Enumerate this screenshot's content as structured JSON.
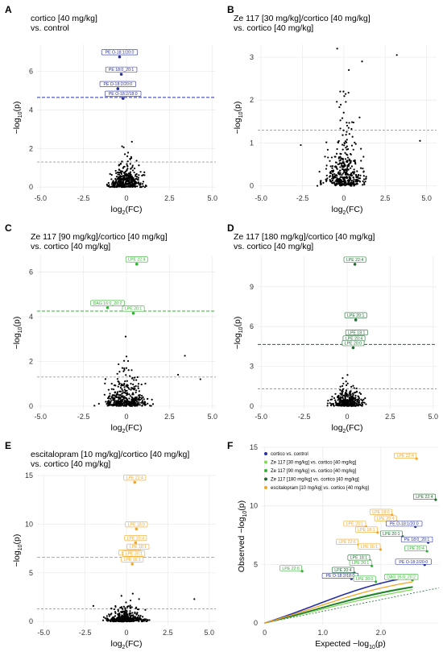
{
  "colors": {
    "blue": "#2630a6",
    "lightgreen": "#7ed957",
    "green": "#33b233",
    "darkgreen": "#1f6b2f",
    "orange": "#f5a623",
    "points": "#000000",
    "threshold_grey": "#9a9a9a",
    "grid": "#ececec"
  },
  "chart_data": [
    {
      "panel": "A",
      "type": "scatter",
      "title": [
        "cortico [40 mg/kg]",
        "vs. control"
      ],
      "xlabel": "log2(FC)",
      "ylabel": "-log10(p)",
      "xlim": [
        -5.2,
        5.2
      ],
      "ylim": [
        -0.2,
        7.4
      ],
      "xticks": [
        -5,
        -2.5,
        0,
        2.5,
        5
      ],
      "yticks": [
        0,
        2,
        4,
        6
      ],
      "color": "blue",
      "threshold_fdr": 4.65,
      "threshold_nominal": 1.3,
      "highlighted": [
        {
          "label": "PE O-18:1/20:0",
          "x": -0.4,
          "y": 6.75
        },
        {
          "label": "PE 18:0_20:1",
          "x": -0.3,
          "y": 5.85
        },
        {
          "label": "PE O-18:2/20:0",
          "x": -0.5,
          "y": 5.1
        },
        {
          "label": "PE O-18:2/18:0",
          "x": -0.2,
          "y": 4.6
        }
      ],
      "cloud": {
        "x_sd": 0.45,
        "x_range": [
          -3.6,
          2.6
        ],
        "y_max": 3.4,
        "n": 380,
        "seed": 11
      }
    },
    {
      "panel": "B",
      "type": "scatter",
      "title": [
        "Ze 117 [30 mg/kg]/cortico [40 mg/kg]",
        "vs. cortico [40 mg/kg]"
      ],
      "xlabel": "log2(FC)",
      "ylabel": "-log10(p)",
      "xlim": [
        -5.2,
        5.6
      ],
      "ylim": [
        -0.12,
        3.3
      ],
      "xticks": [
        -5,
        -2.5,
        0,
        2.5,
        5
      ],
      "yticks": [
        0,
        1,
        2,
        3
      ],
      "color": "lightgreen",
      "threshold_nominal": 1.3,
      "highlighted": [],
      "extra_points": [
        {
          "x": -0.4,
          "y": 3.2
        },
        {
          "x": 3.2,
          "y": 3.05
        },
        {
          "x": 1.1,
          "y": 2.9
        },
        {
          "x": 0.3,
          "y": 2.7
        },
        {
          "x": 4.6,
          "y": 1.05
        },
        {
          "x": -2.6,
          "y": 0.95
        }
      ],
      "cloud": {
        "x_sd": 0.55,
        "x_range": [
          -2.8,
          2.8
        ],
        "y_max": 2.2,
        "n": 400,
        "seed": 23
      }
    },
    {
      "panel": "C",
      "type": "scatter",
      "title": [
        "Ze 117 [90 mg/kg]/cortico [40 mg/kg]",
        "vs. cortico [40 mg/kg]"
      ],
      "xlabel": "log2(FC)",
      "ylabel": "-log10(p)",
      "xlim": [
        -5.2,
        5.2
      ],
      "ylim": [
        -0.15,
        6.7
      ],
      "xticks": [
        -5,
        -2.5,
        0,
        2.5,
        5
      ],
      "yticks": [
        0,
        2,
        4,
        6
      ],
      "color": "green",
      "threshold_fdr": 4.25,
      "threshold_nominal": 1.3,
      "highlighted": [
        {
          "label": "LPE 22:4",
          "x": 0.6,
          "y": 6.35
        },
        {
          "label": "DAG 16:0_20:2",
          "x": -1.1,
          "y": 4.4
        },
        {
          "label": "LPE 20:1",
          "x": 0.4,
          "y": 4.15
        }
      ],
      "extra_points": [
        {
          "x": 4.3,
          "y": 1.2
        },
        {
          "x": 3.4,
          "y": 2.25
        },
        {
          "x": 3.0,
          "y": 1.4
        }
      ],
      "cloud": {
        "x_sd": 0.6,
        "x_range": [
          -3.0,
          3.0
        ],
        "y_max": 3.7,
        "n": 400,
        "seed": 37
      }
    },
    {
      "panel": "D",
      "type": "scatter",
      "title": [
        "Ze 117 [180 mg/kg]/cortico [40 mg/kg]",
        "vs. cortico [40 mg/kg]"
      ],
      "xlabel": "log2(FC)",
      "ylabel": "-log10(p)",
      "xlim": [
        -5.2,
        5.2
      ],
      "ylim": [
        -0.25,
        11.3
      ],
      "xticks": [
        -5,
        -2.5,
        0,
        2.5,
        5
      ],
      "yticks": [
        0,
        3,
        6,
        9
      ],
      "color": "darkgreen",
      "threshold_fdr": 4.65,
      "threshold_nominal": 1.3,
      "highlighted": [
        {
          "label": "LPE 22:4",
          "x": 0.45,
          "y": 10.7
        },
        {
          "label": "LPE 20:1",
          "x": 0.5,
          "y": 6.5
        },
        {
          "label": "LPE 18:1",
          "x": 0.55,
          "y": 5.2
        },
        {
          "label": "LPE 20:4",
          "x": 0.4,
          "y": 4.75
        },
        {
          "label": "LPE 20:0",
          "x": 0.35,
          "y": 4.4
        }
      ],
      "cloud": {
        "x_sd": 0.45,
        "x_range": [
          -2.7,
          2.7
        ],
        "y_max": 3.6,
        "n": 360,
        "seed": 53
      }
    },
    {
      "panel": "E",
      "type": "scatter",
      "title": [
        "escitalopram [10 mg/kg]/cortico [40 mg/kg]",
        "vs. cortico [40 mg/kg]"
      ],
      "xlabel": "log2(FC)",
      "ylabel": "-log10(p)",
      "xlim": [
        -5.4,
        5.4
      ],
      "ylim": [
        -0.4,
        15.0
      ],
      "xticks": [
        -5,
        -2.5,
        0,
        2.5,
        5
      ],
      "yticks": [
        0,
        5,
        10,
        15
      ],
      "color": "orange",
      "threshold_fdr": 6.6,
      "threshold_nominal": 1.3,
      "highlighted": [
        {
          "label": "LPE 22:4",
          "x": 0.5,
          "y": 14.3
        },
        {
          "label": "LPE 18:0",
          "x": 0.6,
          "y": 9.5
        },
        {
          "label": "LPE 20:4",
          "x": 0.55,
          "y": 8.1
        },
        {
          "label": "LPE 18:1",
          "x": 0.7,
          "y": 7.2
        },
        {
          "label": "LPE 22:6",
          "x": 0.2,
          "y": 6.6
        },
        {
          "label": "LPE 20:1",
          "x": 0.45,
          "y": 6.5
        },
        {
          "label": "LPE 16:1",
          "x": 0.35,
          "y": 5.9
        }
      ],
      "cloud": {
        "x_sd": 0.55,
        "x_range": [
          -2.6,
          2.8
        ],
        "y_max": 4.2,
        "n": 400,
        "seed": 71
      },
      "extra_points": [
        {
          "x": 4.1,
          "y": 2.3
        },
        {
          "x": -2.0,
          "y": 1.6
        }
      ]
    },
    {
      "panel": "F",
      "type": "line",
      "title": [],
      "xlabel": "Expected -log10(p)",
      "ylabel": "Observed -log10(p)",
      "xlim": [
        -0.05,
        3.0
      ],
      "ylim": [
        -0.2,
        15.0
      ],
      "xticks": [
        0,
        1,
        2
      ],
      "yticks": [
        0,
        5,
        10,
        15
      ],
      "series": [
        {
          "name": "cortico vs. control",
          "color": "blue",
          "slope": 1.55,
          "bump": 0.6
        },
        {
          "name": "Ze 117 [30 mg/kg] vs. cortico [40 mg/kg]",
          "color": "lightgreen",
          "slope": 1.12,
          "bump": 0.2
        },
        {
          "name": "Ze 117 [90 mg/kg] vs. cortico [40 mg/kg]",
          "color": "green",
          "slope": 1.22,
          "bump": 0.35
        },
        {
          "name": "Ze 117 [180 mg/kg] vs. cortico [40 mg/kg]",
          "color": "darkgreen",
          "slope": 1.2,
          "bump": 0.3
        },
        {
          "name": "escitalopram [10 mg/kg] vs. cortico [40 mg/kg]",
          "color": "orange",
          "slope": 1.38,
          "bump": 0.45
        }
      ],
      "legend_position": "top-left",
      "labels": [
        {
          "label": "LPE 22:4",
          "x": 2.42,
          "y": 14.3,
          "color": "orange"
        },
        {
          "label": "LPE 22:4",
          "x": 2.75,
          "y": 10.8,
          "color": "darkgreen"
        },
        {
          "label": "LPE 18:0",
          "x": 2.0,
          "y": 9.5,
          "color": "orange"
        },
        {
          "label": "LPE 20:4",
          "x": 2.08,
          "y": 8.95,
          "color": "orange"
        },
        {
          "label": "LPE 20:1",
          "x": 1.55,
          "y": 8.5,
          "color": "orange"
        },
        {
          "label": "PE O-18:1/20:0",
          "x": 2.4,
          "y": 8.5,
          "color": "blue"
        },
        {
          "label": "LPE 18:1",
          "x": 1.75,
          "y": 8.0,
          "color": "orange"
        },
        {
          "label": "LPE 20:1",
          "x": 2.18,
          "y": 7.65,
          "color": "darkgreen"
        },
        {
          "label": "PE 18:0_20:1",
          "x": 2.62,
          "y": 7.15,
          "color": "blue"
        },
        {
          "label": "LPE 22:6",
          "x": 1.42,
          "y": 6.95,
          "color": "orange"
        },
        {
          "label": "LPE 16:1",
          "x": 1.8,
          "y": 6.55,
          "color": "orange"
        },
        {
          "label": "LPE 20:4",
          "x": 2.6,
          "y": 6.4,
          "color": "green"
        },
        {
          "label": "LPE 18:1",
          "x": 1.62,
          "y": 5.6,
          "color": "darkgreen"
        },
        {
          "label": "LPE 20:1",
          "x": 1.65,
          "y": 5.15,
          "color": "green"
        },
        {
          "label": "PE O-18:2/20:0",
          "x": 2.56,
          "y": 5.25,
          "color": "blue"
        },
        {
          "label": "LPE 22:6",
          "x": 0.45,
          "y": 4.7,
          "color": "green"
        },
        {
          "label": "LPE 20:4",
          "x": 1.35,
          "y": 4.55,
          "color": "darkgreen"
        },
        {
          "label": "PE O-18:2/18:0",
          "x": 1.3,
          "y": 4.05,
          "color": "blue"
        },
        {
          "label": "LPE 20:0",
          "x": 1.72,
          "y": 3.8,
          "color": "green"
        },
        {
          "label": "DAG 16:0_20:2",
          "x": 2.35,
          "y": 3.95,
          "color": "green"
        }
      ]
    }
  ],
  "panel_labels": [
    "A",
    "B",
    "C",
    "D",
    "E",
    "F"
  ]
}
